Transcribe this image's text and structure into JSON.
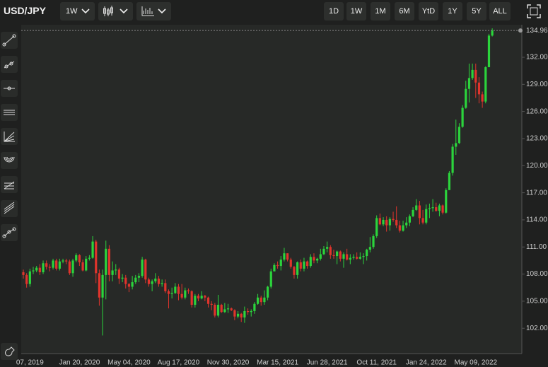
{
  "toolbar": {
    "symbol": "USD/JPY",
    "interval": "1W",
    "ranges": [
      "1D",
      "1W",
      "1M",
      "6M",
      "YtD",
      "1Y",
      "5Y",
      "ALL"
    ]
  },
  "chart_data": {
    "type": "candlestick",
    "categories": [
      null,
      null,
      "07, 2019",
      null,
      null,
      null,
      null,
      null,
      null,
      null,
      null,
      null,
      null,
      null,
      null,
      null,
      null,
      "Jan 20, 2020",
      null,
      null,
      null,
      null,
      null,
      null,
      null,
      null,
      null,
      null,
      null,
      null,
      null,
      null,
      "May 04, 2020",
      null,
      null,
      null,
      null,
      null,
      null,
      null,
      null,
      null,
      null,
      null,
      null,
      null,
      null,
      "Aug 17, 2020",
      null,
      null,
      null,
      null,
      null,
      null,
      null,
      null,
      null,
      null,
      null,
      null,
      null,
      null,
      "Nov 30, 2020",
      null,
      null,
      null,
      null,
      null,
      null,
      null,
      null,
      null,
      null,
      null,
      null,
      null,
      null,
      "Mar 15, 2021",
      null,
      null,
      null,
      null,
      null,
      null,
      null,
      null,
      null,
      null,
      null,
      null,
      null,
      null,
      "Jun 28, 2021",
      null,
      null,
      null,
      null,
      null,
      null,
      null,
      null,
      null,
      null,
      null,
      null,
      null,
      null,
      "Oct 11, 2021",
      null,
      null,
      null,
      null,
      null,
      null,
      null,
      null,
      null,
      null,
      null,
      null,
      null,
      null,
      "Jan 24, 2022",
      null,
      null,
      null,
      null,
      null,
      null,
      null,
      null,
      null,
      null,
      null,
      null,
      null,
      null,
      "May 09, 2022",
      null,
      null,
      null,
      null,
      null
    ],
    "open": [
      108.2,
      107.9,
      106.9,
      108.3,
      108.4,
      108.7,
      108.2,
      109.2,
      108.8,
      108.7,
      109.5,
      108.6,
      109.4,
      109.5,
      109.4,
      108.1,
      109.5,
      110.1,
      109.3,
      108.4,
      109.7,
      109.8,
      111.6,
      108.1,
      105.4,
      107.9,
      110.8,
      107.9,
      108.4,
      108.5,
      107.5,
      107.6,
      106.9,
      106.6,
      107.1,
      107.6,
      107.8,
      109.6,
      107.4,
      106.9,
      107.2,
      107.5,
      106.9,
      107.0,
      106.1,
      105.8,
      105.9,
      106.6,
      105.8,
      105.4,
      106.2,
      106.1,
      104.6,
      105.6,
      105.3,
      105.6,
      105.4,
      104.7,
      104.6,
      103.4,
      104.6,
      103.8,
      104.1,
      104.2,
      104.0,
      103.3,
      103.6,
      103.2,
      103.9,
      103.8,
      103.9,
      104.7,
      105.4,
      104.9,
      105.4,
      106.6,
      108.3,
      109.0,
      108.9,
      109.6,
      110.3,
      109.6,
      108.8,
      107.9,
      109.3,
      108.6,
      109.4,
      108.9,
      109.9,
      109.5,
      109.7,
      110.2,
      110.8,
      111.0,
      110.1,
      110.0,
      110.5,
      109.7,
      110.2,
      109.6,
      109.8,
      109.9,
      109.7,
      109.9,
      110.0,
      110.7,
      111.0,
      112.2,
      114.2,
      113.5,
      114.0,
      113.4,
      114.1,
      114.0,
      113.4,
      112.8,
      113.4,
      113.7,
      114.4,
      115.1,
      115.6,
      114.2,
      113.7,
      115.2,
      115.3,
      115.4,
      115.0,
      115.6,
      114.8,
      117.3,
      119.2,
      122.1,
      122.5,
      124.3,
      126.4,
      128.5,
      129.7,
      130.6,
      129.2,
      127.9,
      127.1,
      130.9,
      134.4
    ],
    "high": [
      108.5,
      108.1,
      108.6,
      108.8,
      108.9,
      109.1,
      109.5,
      109.5,
      109.1,
      109.7,
      109.7,
      109.7,
      109.7,
      109.7,
      109.6,
      109.7,
      110.3,
      110.2,
      109.6,
      110.0,
      110.1,
      112.2,
      111.8,
      108.5,
      108.5,
      111.7,
      111.2,
      109.4,
      109.1,
      108.7,
      108.0,
      107.9,
      107.0,
      107.8,
      107.9,
      108.1,
      109.9,
      109.7,
      107.6,
      107.4,
      108.1,
      107.8,
      107.4,
      107.4,
      106.3,
      106.5,
      107.0,
      106.9,
      106.9,
      106.5,
      106.4,
      106.2,
      105.8,
      105.8,
      106.1,
      105.7,
      105.5,
      105.0,
      104.8,
      105.7,
      104.7,
      104.8,
      104.7,
      104.3,
      104.1,
      103.9,
      103.7,
      104.4,
      104.2,
      104.1,
      104.9,
      105.8,
      105.6,
      106.2,
      106.7,
      108.6,
      109.2,
      109.4,
      110.0,
      110.9,
      110.3,
      109.8,
      108.9,
      109.4,
      109.6,
      109.8,
      109.5,
      110.2,
      110.3,
      109.8,
      110.8,
      111.1,
      111.6,
      111.2,
      110.7,
      110.6,
      110.6,
      110.4,
      110.8,
      110.2,
      110.2,
      110.4,
      110.4,
      110.3,
      110.8,
      112.1,
      112.4,
      114.5,
      114.7,
      114.3,
      114.4,
      114.3,
      114.9,
      115.5,
      113.9,
      113.9,
      114.3,
      114.6,
      115.4,
      116.3,
      116.1,
      115.1,
      115.7,
      115.8,
      116.3,
      115.9,
      115.8,
      115.7,
      117.5,
      119.4,
      122.4,
      125.1,
      124.7,
      126.7,
      129.4,
      131.3,
      131.3,
      131.3,
      129.8,
      128.2,
      131.0,
      134.6,
      135.2
    ],
    "low": [
      107.5,
      106.5,
      106.6,
      108.0,
      108.2,
      107.9,
      108.0,
      108.5,
      108.3,
      108.5,
      108.4,
      108.4,
      109.2,
      109.1,
      107.9,
      107.7,
      109.3,
      108.9,
      108.3,
      108.3,
      109.5,
      109.7,
      107.0,
      104.5,
      101.2,
      105.2,
      107.2,
      107.2,
      107.9,
      106.9,
      107.1,
      106.4,
      106.0,
      106.3,
      106.9,
      107.1,
      107.6,
      107.0,
      106.6,
      106.1,
      107.0,
      106.6,
      106.6,
      105.9,
      104.2,
      105.3,
      105.8,
      105.1,
      105.2,
      105.2,
      105.8,
      104.3,
      104.3,
      105.0,
      105.2,
      105.0,
      104.3,
      104.0,
      103.2,
      103.2,
      103.7,
      103.7,
      103.7,
      103.9,
      102.9,
      103.1,
      102.7,
      102.6,
      103.5,
      103.3,
      103.6,
      104.6,
      104.5,
      104.6,
      105.1,
      106.4,
      108.3,
      108.6,
      108.4,
      109.4,
      109.4,
      108.6,
      107.5,
      107.5,
      108.3,
      108.3,
      108.6,
      108.7,
      109.2,
      109.2,
      109.5,
      110.1,
      110.4,
      109.7,
      109.7,
      109.1,
      109.4,
      108.7,
      109.5,
      109.1,
      109.6,
      109.6,
      109.6,
      109.1,
      109.5,
      110.4,
      110.8,
      112.0,
      113.4,
      113.3,
      112.7,
      112.8,
      113.8,
      113.1,
      112.6,
      112.7,
      113.1,
      113.3,
      114.3,
      115.0,
      113.5,
      113.5,
      113.5,
      114.2,
      114.9,
      114.9,
      114.4,
      114.6,
      114.7,
      117.3,
      118.9,
      121.2,
      122.4,
      124.2,
      126.3,
      127.0,
      129.5,
      127.5,
      126.9,
      126.4,
      126.9,
      130.9,
      134.3
    ],
    "close": [
      107.9,
      106.9,
      108.3,
      108.4,
      108.7,
      108.2,
      109.2,
      108.8,
      108.7,
      109.5,
      108.6,
      109.4,
      109.5,
      109.4,
      108.1,
      109.5,
      110.1,
      109.3,
      108.4,
      109.7,
      109.8,
      111.6,
      108.1,
      105.4,
      107.9,
      110.8,
      107.9,
      108.4,
      108.5,
      107.5,
      107.6,
      106.9,
      106.6,
      107.1,
      107.6,
      107.8,
      109.6,
      107.4,
      106.9,
      107.2,
      107.5,
      106.9,
      107.0,
      106.1,
      105.8,
      105.9,
      106.6,
      105.8,
      105.4,
      106.2,
      106.1,
      104.6,
      105.6,
      105.3,
      105.6,
      105.4,
      104.7,
      104.6,
      103.4,
      104.6,
      103.8,
      104.1,
      104.2,
      104.0,
      103.3,
      103.6,
      103.2,
      103.9,
      103.8,
      103.9,
      104.7,
      105.4,
      104.9,
      105.4,
      106.6,
      108.3,
      109.0,
      108.9,
      109.6,
      110.3,
      109.6,
      108.8,
      107.9,
      109.3,
      108.6,
      109.4,
      108.9,
      109.9,
      109.5,
      109.7,
      110.2,
      110.8,
      111.0,
      110.1,
      110.0,
      110.5,
      109.7,
      110.2,
      109.6,
      109.8,
      109.9,
      109.7,
      109.9,
      110.0,
      110.7,
      111.0,
      112.2,
      114.2,
      113.5,
      114.0,
      113.4,
      114.1,
      114.0,
      113.4,
      112.8,
      113.4,
      113.7,
      114.4,
      115.1,
      115.6,
      114.2,
      113.7,
      115.2,
      115.3,
      115.4,
      115.0,
      115.6,
      114.8,
      117.3,
      119.2,
      122.1,
      122.5,
      124.3,
      126.4,
      128.5,
      129.7,
      130.6,
      129.2,
      127.9,
      127.1,
      130.9,
      134.4,
      134.96
    ],
    "last_price": 134.96,
    "up_color": "#2bd43c",
    "down_color": "#e0342c",
    "ylim": [
      99.2,
      135.6
    ],
    "yticks": [
      {
        "value": 102,
        "label": "102.00"
      },
      {
        "value": 105,
        "label": "105.00"
      },
      {
        "value": 108,
        "label": "108.00"
      },
      {
        "value": 111,
        "label": "111.00"
      },
      {
        "value": 114,
        "label": "114.00"
      },
      {
        "value": 117,
        "label": "117.00"
      },
      {
        "value": 120,
        "label": "120.00"
      },
      {
        "value": 123,
        "label": "123.00"
      },
      {
        "value": 126,
        "label": "126.00"
      },
      {
        "value": 129,
        "label": "129.00"
      },
      {
        "value": 132,
        "label": "132.00"
      }
    ]
  }
}
